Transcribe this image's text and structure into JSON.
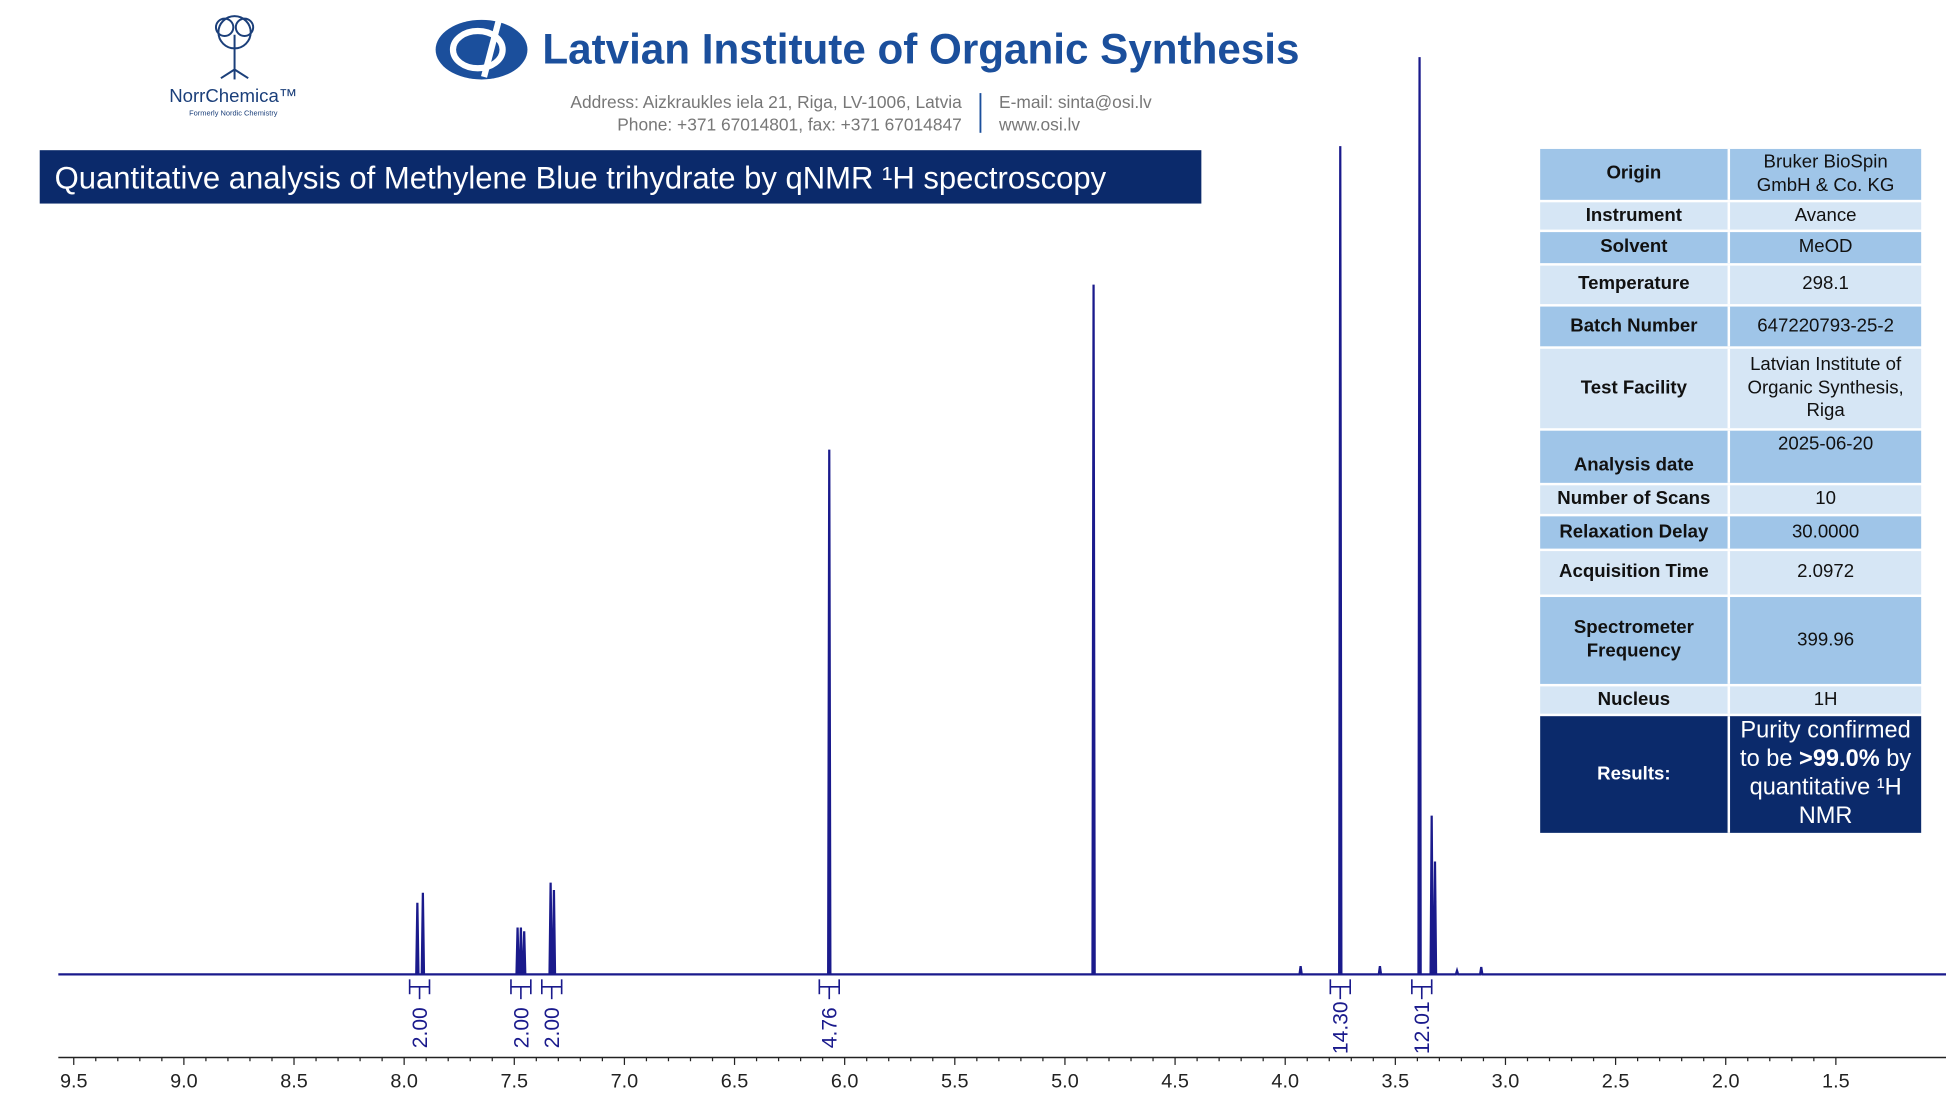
{
  "header": {
    "logo_name": "NorrChemica™",
    "logo_subtitle": "Formerly Nordic Chemistry",
    "institute": "Latvian Institute of Organic Synthesis",
    "address": "Address: Aizkraukles iela 21, Riga, LV-1006, Latvia",
    "phone": "Phone: +371 67014801, fax: +371 67014847",
    "email": "E-mail: sinta@osi.lv",
    "website": "www.osi.lv"
  },
  "info_table": {
    "rows": [
      [
        "Origin",
        "Bruker BioSpin GmbH & Co. KG"
      ],
      [
        "Instrument",
        "Avance"
      ],
      [
        "Solvent",
        "MeOD"
      ],
      [
        "Temperature",
        "298.1"
      ],
      [
        "Batch Number",
        "647220793-25-2"
      ],
      [
        "Test Facility",
        "Latvian Institute of Organic Synthesis, Riga"
      ],
      [
        "Analysis date",
        "2025-06-20"
      ],
      [
        "Number of Scans",
        "10"
      ],
      [
        "Relaxation Delay",
        "30.0000"
      ],
      [
        "Acquisition Time",
        "2.0972"
      ],
      [
        "Spectrometer Frequency",
        "399.96"
      ],
      [
        "Nucleus",
        "1H"
      ]
    ],
    "results": {
      "label": "Results:",
      "text": [
        "Purity confirmed to be",
        ">99.0%",
        "by quantitative ¹H NMR"
      ]
    }
  },
  "chart_data": {
    "type": "line",
    "title": "Quantitative analysis of Methylene Blue trihydrate by qNMR ¹H spectroscopy",
    "color": "#1a1a8c",
    "x": [
      9.57,
      7.945,
      7.94,
      7.935,
      7.92,
      7.915,
      7.91,
      7.49,
      7.485,
      7.48,
      7.475,
      7.47,
      7.465,
      7.46,
      7.455,
      7.45,
      7.34,
      7.335,
      7.33,
      7.325,
      7.32,
      7.315,
      6.075,
      6.07,
      6.065,
      4.875,
      4.87,
      4.865,
      3.935,
      3.93,
      3.925,
      3.755,
      3.75,
      3.745,
      3.575,
      3.57,
      3.565,
      3.395,
      3.39,
      3.385,
      3.34,
      3.335,
      3.33,
      3.325,
      3.32,
      3.315,
      3.225,
      3.22,
      3.215,
      3.115,
      3.11,
      3.105,
      1.0
    ],
    "values": [
      0,
      0,
      7.8,
      0,
      0,
      8.9,
      0,
      0,
      5.1,
      0,
      0,
      5.1,
      0,
      0,
      4.7,
      0,
      0,
      10.0,
      0,
      0,
      9.2,
      0,
      0,
      57.2,
      0,
      0,
      75.2,
      0,
      0,
      0.9,
      0,
      0,
      90.3,
      0,
      0,
      0.9,
      0,
      0,
      100,
      0,
      0,
      17.3,
      0,
      0,
      12.3,
      0,
      0,
      0.4,
      0,
      0,
      0.8,
      0,
      0
    ],
    "integrals": {
      "x": [
        7.93,
        7.47,
        7.33,
        6.07,
        3.75,
        3.38
      ],
      "values": [
        2,
        2,
        2,
        4.76,
        14.3,
        12.01
      ],
      "value_labels": [
        "2.00",
        "2.00",
        "2.00",
        "4.76",
        "14.30",
        "12.01"
      ]
    },
    "xlim": [
      9.57,
      1.0
    ],
    "xticks": [
      9.5,
      {
        "value": 9,
        "label": "9.0"
      },
      8.5,
      {
        "value": 8,
        "label": "8.0"
      },
      7.5,
      {
        "value": 7,
        "label": "7.0"
      },
      6.5,
      {
        "value": 6,
        "label": "6.0"
      },
      5.5,
      {
        "value": 5,
        "label": "5.0"
      },
      4.5,
      {
        "value": 4,
        "label": "4.0"
      },
      3.5,
      {
        "value": 3,
        "label": "3.0"
      },
      2.5,
      {
        "value": 2,
        "label": "2.0"
      },
      1.5
    ]
  }
}
